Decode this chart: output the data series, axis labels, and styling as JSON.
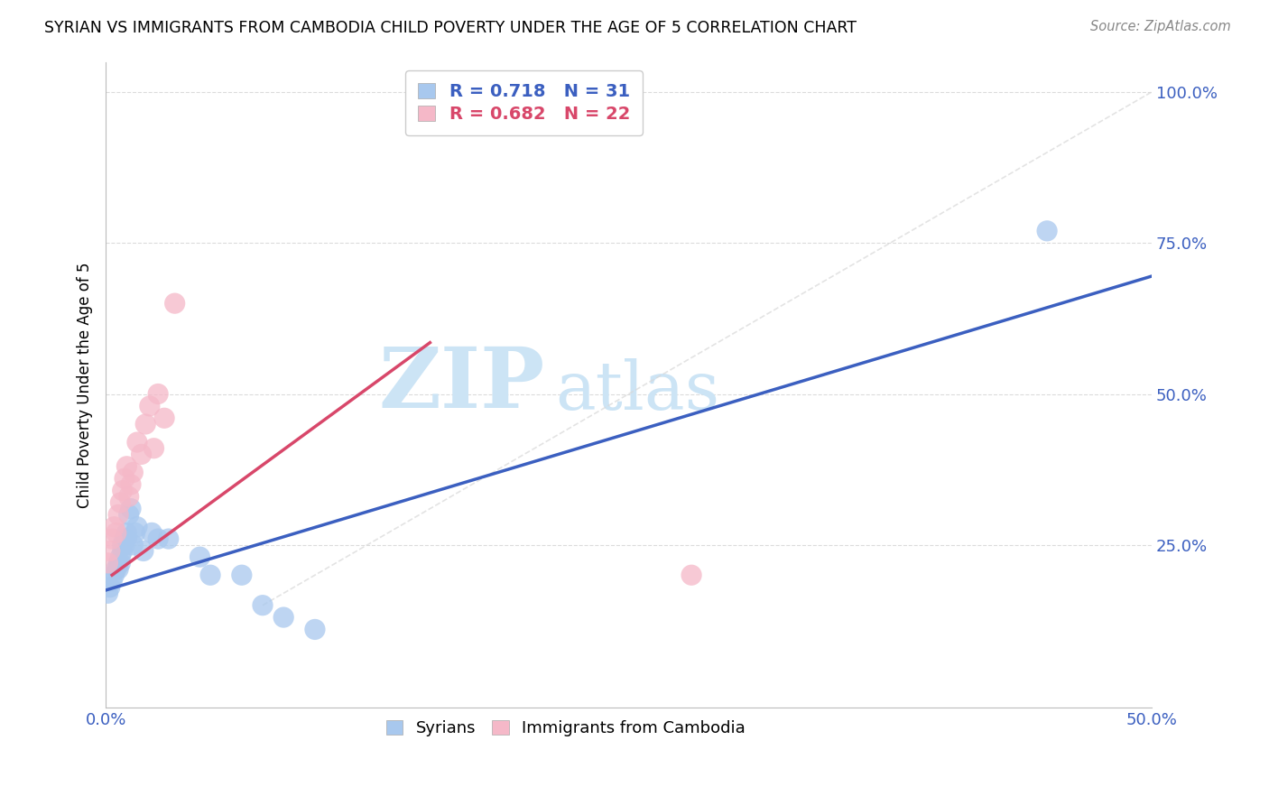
{
  "title": "SYRIAN VS IMMIGRANTS FROM CAMBODIA CHILD POVERTY UNDER THE AGE OF 5 CORRELATION CHART",
  "source": "Source: ZipAtlas.com",
  "ylabel_label": "Child Poverty Under the Age of 5",
  "xlim": [
    0.0,
    0.5
  ],
  "ylim": [
    -0.02,
    1.05
  ],
  "xticks": [
    0.0,
    0.1,
    0.2,
    0.3,
    0.4,
    0.5
  ],
  "yticks": [
    0.25,
    0.5,
    0.75,
    1.0
  ],
  "ytick_labels": [
    "25.0%",
    "50.0%",
    "75.0%",
    "100.0%"
  ],
  "xtick_labels": [
    "0.0%",
    "",
    "",
    "",
    "",
    "50.0%"
  ],
  "r_syrian": 0.718,
  "n_syrian": 31,
  "r_cambodia": 0.682,
  "n_cambodia": 22,
  "color_syrian": "#a8c8ee",
  "color_cambodia": "#f5b8c8",
  "line_color_syrian": "#3b5fc0",
  "line_color_cambodia": "#d8476a",
  "diagonal_color": "#d8d8d8",
  "background_color": "#ffffff",
  "watermark_zip": "ZIP",
  "watermark_atlas": "atlas",
  "watermark_color": "#cce4f5",
  "tick_color": "#3b5fc0",
  "syrian_x": [
    0.001,
    0.002,
    0.003,
    0.004,
    0.005,
    0.006,
    0.006,
    0.007,
    0.007,
    0.008,
    0.008,
    0.009,
    0.009,
    0.01,
    0.01,
    0.011,
    0.012,
    0.013,
    0.014,
    0.015,
    0.018,
    0.022,
    0.025,
    0.03,
    0.045,
    0.05,
    0.065,
    0.075,
    0.085,
    0.1,
    0.45
  ],
  "syrian_y": [
    0.17,
    0.18,
    0.19,
    0.2,
    0.21,
    0.21,
    0.22,
    0.22,
    0.23,
    0.24,
    0.25,
    0.26,
    0.25,
    0.27,
    0.26,
    0.3,
    0.31,
    0.25,
    0.27,
    0.28,
    0.24,
    0.27,
    0.26,
    0.26,
    0.23,
    0.2,
    0.2,
    0.15,
    0.13,
    0.11,
    0.77
  ],
  "cambodia_x": [
    0.001,
    0.002,
    0.003,
    0.004,
    0.005,
    0.006,
    0.007,
    0.008,
    0.009,
    0.01,
    0.011,
    0.012,
    0.013,
    0.015,
    0.017,
    0.019,
    0.021,
    0.023,
    0.025,
    0.028,
    0.033,
    0.28
  ],
  "cambodia_y": [
    0.22,
    0.24,
    0.26,
    0.28,
    0.27,
    0.3,
    0.32,
    0.34,
    0.36,
    0.38,
    0.33,
    0.35,
    0.37,
    0.42,
    0.4,
    0.45,
    0.48,
    0.41,
    0.5,
    0.46,
    0.65,
    0.2
  ],
  "syrian_line_x": [
    0.0,
    0.5
  ],
  "syrian_line_y": [
    0.175,
    0.695
  ],
  "cambodia_line_x": [
    0.003,
    0.155
  ],
  "cambodia_line_y": [
    0.2,
    0.585
  ]
}
